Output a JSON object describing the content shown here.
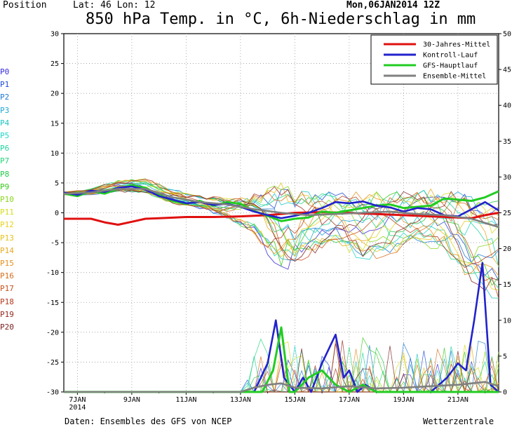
{
  "header": {
    "position_label": "Position",
    "lat_lon": "Lat: 46 Lon: 12",
    "run_date": "Mon,06JAN2014 12Z",
    "title": "850 hPa Temp. in °C, 6h-Niederschlag in mm"
  },
  "footer": {
    "source": "Daten: Ensembles des GFS von NCEP",
    "brand": "Wetterzentrale"
  },
  "members": [
    {
      "label": "P0",
      "color": "#3a2ad8"
    },
    {
      "label": "P1",
      "color": "#1f4cd6"
    },
    {
      "label": "P2",
      "color": "#1f7ad6"
    },
    {
      "label": "P3",
      "color": "#1fa6d6"
    },
    {
      "label": "P4",
      "color": "#1fc4c4"
    },
    {
      "label": "P5",
      "color": "#22d4c8"
    },
    {
      "label": "P6",
      "color": "#22d4a0"
    },
    {
      "label": "P7",
      "color": "#22d47a"
    },
    {
      "label": "P8",
      "color": "#22c84a"
    },
    {
      "label": "P9",
      "color": "#3cc81e"
    },
    {
      "label": "P10",
      "color": "#8ad61e"
    },
    {
      "label": "P11",
      "color": "#d4dc1e"
    },
    {
      "label": "P12",
      "color": "#e6d21e"
    },
    {
      "label": "P13",
      "color": "#e6c21e"
    },
    {
      "label": "P14",
      "color": "#e6aa1e"
    },
    {
      "label": "P15",
      "color": "#e6901e"
    },
    {
      "label": "P16",
      "color": "#d66e1e"
    },
    {
      "label": "P17",
      "color": "#c8501e"
    },
    {
      "label": "P18",
      "color": "#b23a1e"
    },
    {
      "label": "P19",
      "color": "#962a1e"
    },
    {
      "label": "P20",
      "color": "#7a1e1e"
    }
  ],
  "chart_data": {
    "type": "line",
    "title": "850 hPa Temp. in °C, 6h-Niederschlag in mm",
    "x_ticks": [
      "7JAN\n2014",
      "9JAN",
      "11JAN",
      "13JAN",
      "15JAN",
      "17JAN",
      "19JAN",
      "21JAN"
    ],
    "x_range_days": [
      6.5,
      22.5
    ],
    "y_left": {
      "ticks": [
        30,
        25,
        20,
        15,
        10,
        5,
        0,
        -5,
        -10,
        -15,
        -20,
        -25,
        -30
      ],
      "range": [
        -30,
        30
      ]
    },
    "y_right": {
      "ticks": [
        50,
        45,
        40,
        35,
        30,
        25,
        20,
        15,
        10,
        5,
        0
      ],
      "range": [
        0,
        50
      ]
    },
    "grid": true,
    "legend_position": "top-right",
    "legend": [
      {
        "name": "30-Jahres-Mittel",
        "color": "#e01010"
      },
      {
        "name": "Kontroll-Lauf",
        "color": "#2222cc"
      },
      {
        "name": "GFS-Hauptlauf",
        "color": "#22cc22"
      },
      {
        "name": "Ensemble-Mittel",
        "color": "#808080"
      }
    ],
    "series": [
      {
        "name": "30-Jahres-Mittel",
        "color": "#e01010",
        "axis": "temp",
        "x": [
          6.5,
          7.5,
          8.0,
          8.5,
          9.0,
          9.5,
          10.0,
          11.0,
          12.0,
          13.0,
          14.0,
          15.0,
          16.0,
          17.0,
          18.0,
          19.0,
          20.0,
          21.0,
          21.5,
          22.0,
          22.5
        ],
        "y": [
          -1.0,
          -1.0,
          -1.6,
          -2.0,
          -1.5,
          -1.0,
          -0.9,
          -0.7,
          -0.7,
          -0.6,
          -0.4,
          0.0,
          0.1,
          0.0,
          -0.2,
          -0.4,
          -0.6,
          -0.8,
          -0.9,
          -0.4,
          0.0
        ]
      },
      {
        "name": "GFS-Hauptlauf",
        "color": "#22cc22",
        "axis": "temp",
        "x": [
          6.5,
          7.0,
          7.5,
          8.0,
          8.5,
          9.0,
          9.5,
          10.0,
          10.5,
          11.0,
          11.5,
          12.0,
          12.5,
          13.0,
          13.5,
          14.0,
          14.5,
          15.0,
          15.5,
          16.0,
          16.5,
          17.0,
          17.5,
          18.0,
          18.5,
          19.0,
          19.5,
          20.0,
          20.5,
          21.0,
          21.5,
          22.0,
          22.5
        ],
        "y": [
          3.2,
          2.8,
          3.6,
          3.2,
          4.0,
          4.6,
          4.2,
          3.0,
          2.0,
          1.5,
          2.0,
          1.2,
          1.8,
          1.5,
          0.3,
          -0.5,
          -1.4,
          -1.0,
          -0.8,
          0.2,
          0.0,
          0.4,
          0.8,
          1.2,
          1.4,
          0.8,
          1.0,
          1.2,
          2.4,
          2.2,
          2.0,
          2.6,
          3.6
        ]
      },
      {
        "name": "Kontroll-Lauf",
        "color": "#2222cc",
        "axis": "temp",
        "x": [
          6.5,
          7.0,
          7.5,
          8.0,
          8.5,
          9.0,
          9.5,
          10.0,
          10.5,
          11.0,
          11.5,
          12.0,
          12.5,
          13.0,
          13.5,
          14.0,
          14.5,
          15.0,
          15.5,
          16.0,
          16.5,
          17.0,
          17.5,
          18.0,
          18.5,
          19.0,
          19.5,
          20.0,
          20.5,
          21.0,
          21.5,
          22.0,
          22.5
        ],
        "y": [
          3.4,
          3.0,
          3.7,
          3.5,
          4.2,
          4.4,
          3.9,
          2.8,
          2.2,
          1.6,
          1.8,
          1.3,
          1.5,
          1.0,
          0.2,
          -0.4,
          -0.9,
          -0.5,
          0.0,
          0.8,
          1.8,
          1.6,
          1.9,
          1.2,
          0.9,
          0.2,
          0.8,
          0.6,
          -0.4,
          -0.6,
          0.6,
          1.8,
          0.4
        ]
      },
      {
        "name": "Ensemble-Mittel",
        "color": "#808080",
        "axis": "temp",
        "x": [
          6.5,
          7.5,
          8.5,
          9.5,
          10.5,
          11.5,
          12.5,
          13.5,
          14.5,
          15.5,
          16.5,
          17.5,
          18.5,
          19.5,
          20.5,
          21.5,
          22.5
        ],
        "y": [
          3.2,
          3.4,
          4.0,
          4.0,
          2.6,
          1.8,
          1.4,
          0.6,
          0.0,
          -0.4,
          -0.2,
          0.0,
          0.2,
          -0.2,
          -0.4,
          -1.0,
          -2.4
        ]
      },
      {
        "name": "Kontroll-Lauf",
        "color": "#2222cc",
        "axis": "precip",
        "x": [
          6.5,
          13.5,
          14.0,
          14.3,
          14.6,
          15.0,
          15.3,
          15.6,
          16.0,
          16.5,
          16.8,
          17.0,
          17.3,
          17.6,
          18.0,
          20.0,
          20.6,
          21.0,
          21.3,
          21.6,
          21.9,
          22.2,
          22.5
        ],
        "y": [
          0,
          0,
          4,
          10,
          2,
          0,
          2,
          0,
          4,
          8,
          2,
          3,
          0,
          1,
          0,
          0,
          2,
          4,
          3,
          10,
          18,
          1,
          0
        ]
      },
      {
        "name": "GFS-Hauptlauf",
        "color": "#22cc22",
        "axis": "precip",
        "x": [
          6.5,
          13.8,
          14.2,
          14.5,
          14.8,
          15.0,
          15.5,
          16.0,
          16.5,
          17.0,
          17.5,
          18.0,
          22.5
        ],
        "y": [
          0,
          0,
          3,
          9,
          0,
          0,
          2,
          3,
          1,
          0,
          1,
          0,
          0
        ]
      },
      {
        "name": "Ensemble-Mittel",
        "color": "#808080",
        "axis": "precip",
        "x": [
          6.5,
          13.0,
          13.5,
          14.0,
          14.5,
          15.0,
          16.0,
          17.0,
          18.0,
          19.0,
          20.0,
          21.0,
          22.0,
          22.5
        ],
        "y": [
          0,
          0,
          0.6,
          1.0,
          1.2,
          0.6,
          0.5,
          0.8,
          0.5,
          0.6,
          0.8,
          1.0,
          1.4,
          0.8
        ]
      }
    ],
    "ensemble_temp_envelope": {
      "x": [
        6.5,
        7.5,
        8.5,
        9.5,
        10.5,
        11.5,
        12.5,
        13.5,
        14.5,
        15.5,
        16.5,
        17.5,
        18.5,
        19.5,
        20.5,
        21.5,
        22.5
      ],
      "upper": [
        3.5,
        4.0,
        5.5,
        5.8,
        4.0,
        3.0,
        2.5,
        4.0,
        5.5,
        3.5,
        3.5,
        3.5,
        3.5,
        4.0,
        4.0,
        3.0,
        2.0
      ],
      "lower": [
        3.0,
        3.0,
        3.5,
        3.2,
        1.5,
        0.5,
        -1.0,
        -3.5,
        -10.5,
        -7.5,
        -5.0,
        -8.5,
        -7.0,
        -5.5,
        -6.5,
        -12.0,
        -15.0
      ]
    }
  }
}
